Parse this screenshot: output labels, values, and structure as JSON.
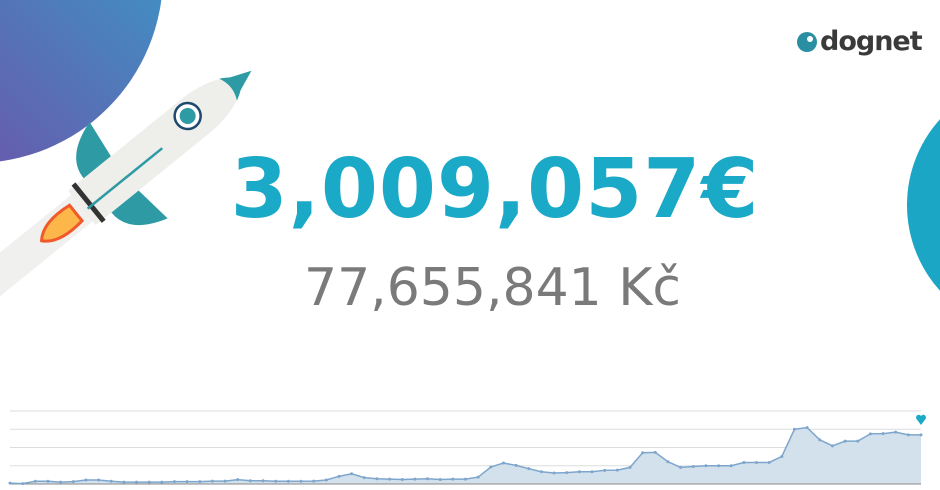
{
  "brand": {
    "name": "dognet"
  },
  "amounts": {
    "primary": "3,009,057€",
    "secondary": "77,655,841 Kč"
  },
  "colors": {
    "accent": "#1ba9c8",
    "secondary_text": "#7a7a7a",
    "chart_line": "#7ea6cc",
    "chart_fill": "#d3e1ec",
    "gradient_start": "#7b3fa0",
    "gradient_end": "#2eaad0"
  },
  "icons": {
    "marker": "heart-icon",
    "logo": "dognet-logo-icon",
    "decoration": "rocket-icon"
  },
  "chart_data": {
    "type": "area",
    "title": "",
    "xlabel": "",
    "ylabel": "",
    "ylim": [
      0,
      4
    ],
    "grid": true,
    "values": [
      0.05,
      0.02,
      0.15,
      0.15,
      0.1,
      0.13,
      0.22,
      0.22,
      0.15,
      0.1,
      0.1,
      0.1,
      0.1,
      0.13,
      0.13,
      0.13,
      0.16,
      0.16,
      0.24,
      0.18,
      0.18,
      0.15,
      0.15,
      0.15,
      0.16,
      0.22,
      0.42,
      0.56,
      0.35,
      0.29,
      0.27,
      0.25,
      0.27,
      0.29,
      0.25,
      0.27,
      0.27,
      0.38,
      0.93,
      1.15,
      1.02,
      0.84,
      0.67,
      0.6,
      0.62,
      0.67,
      0.67,
      0.75,
      0.76,
      0.91,
      1.71,
      1.73,
      1.22,
      0.91,
      0.96,
      1.0,
      1.0,
      1.0,
      1.18,
      1.18,
      1.18,
      1.51,
      3.0,
      3.09,
      2.42,
      2.09,
      2.35,
      2.35,
      2.75,
      2.76,
      2.84,
      2.69,
      2.69
    ]
  }
}
